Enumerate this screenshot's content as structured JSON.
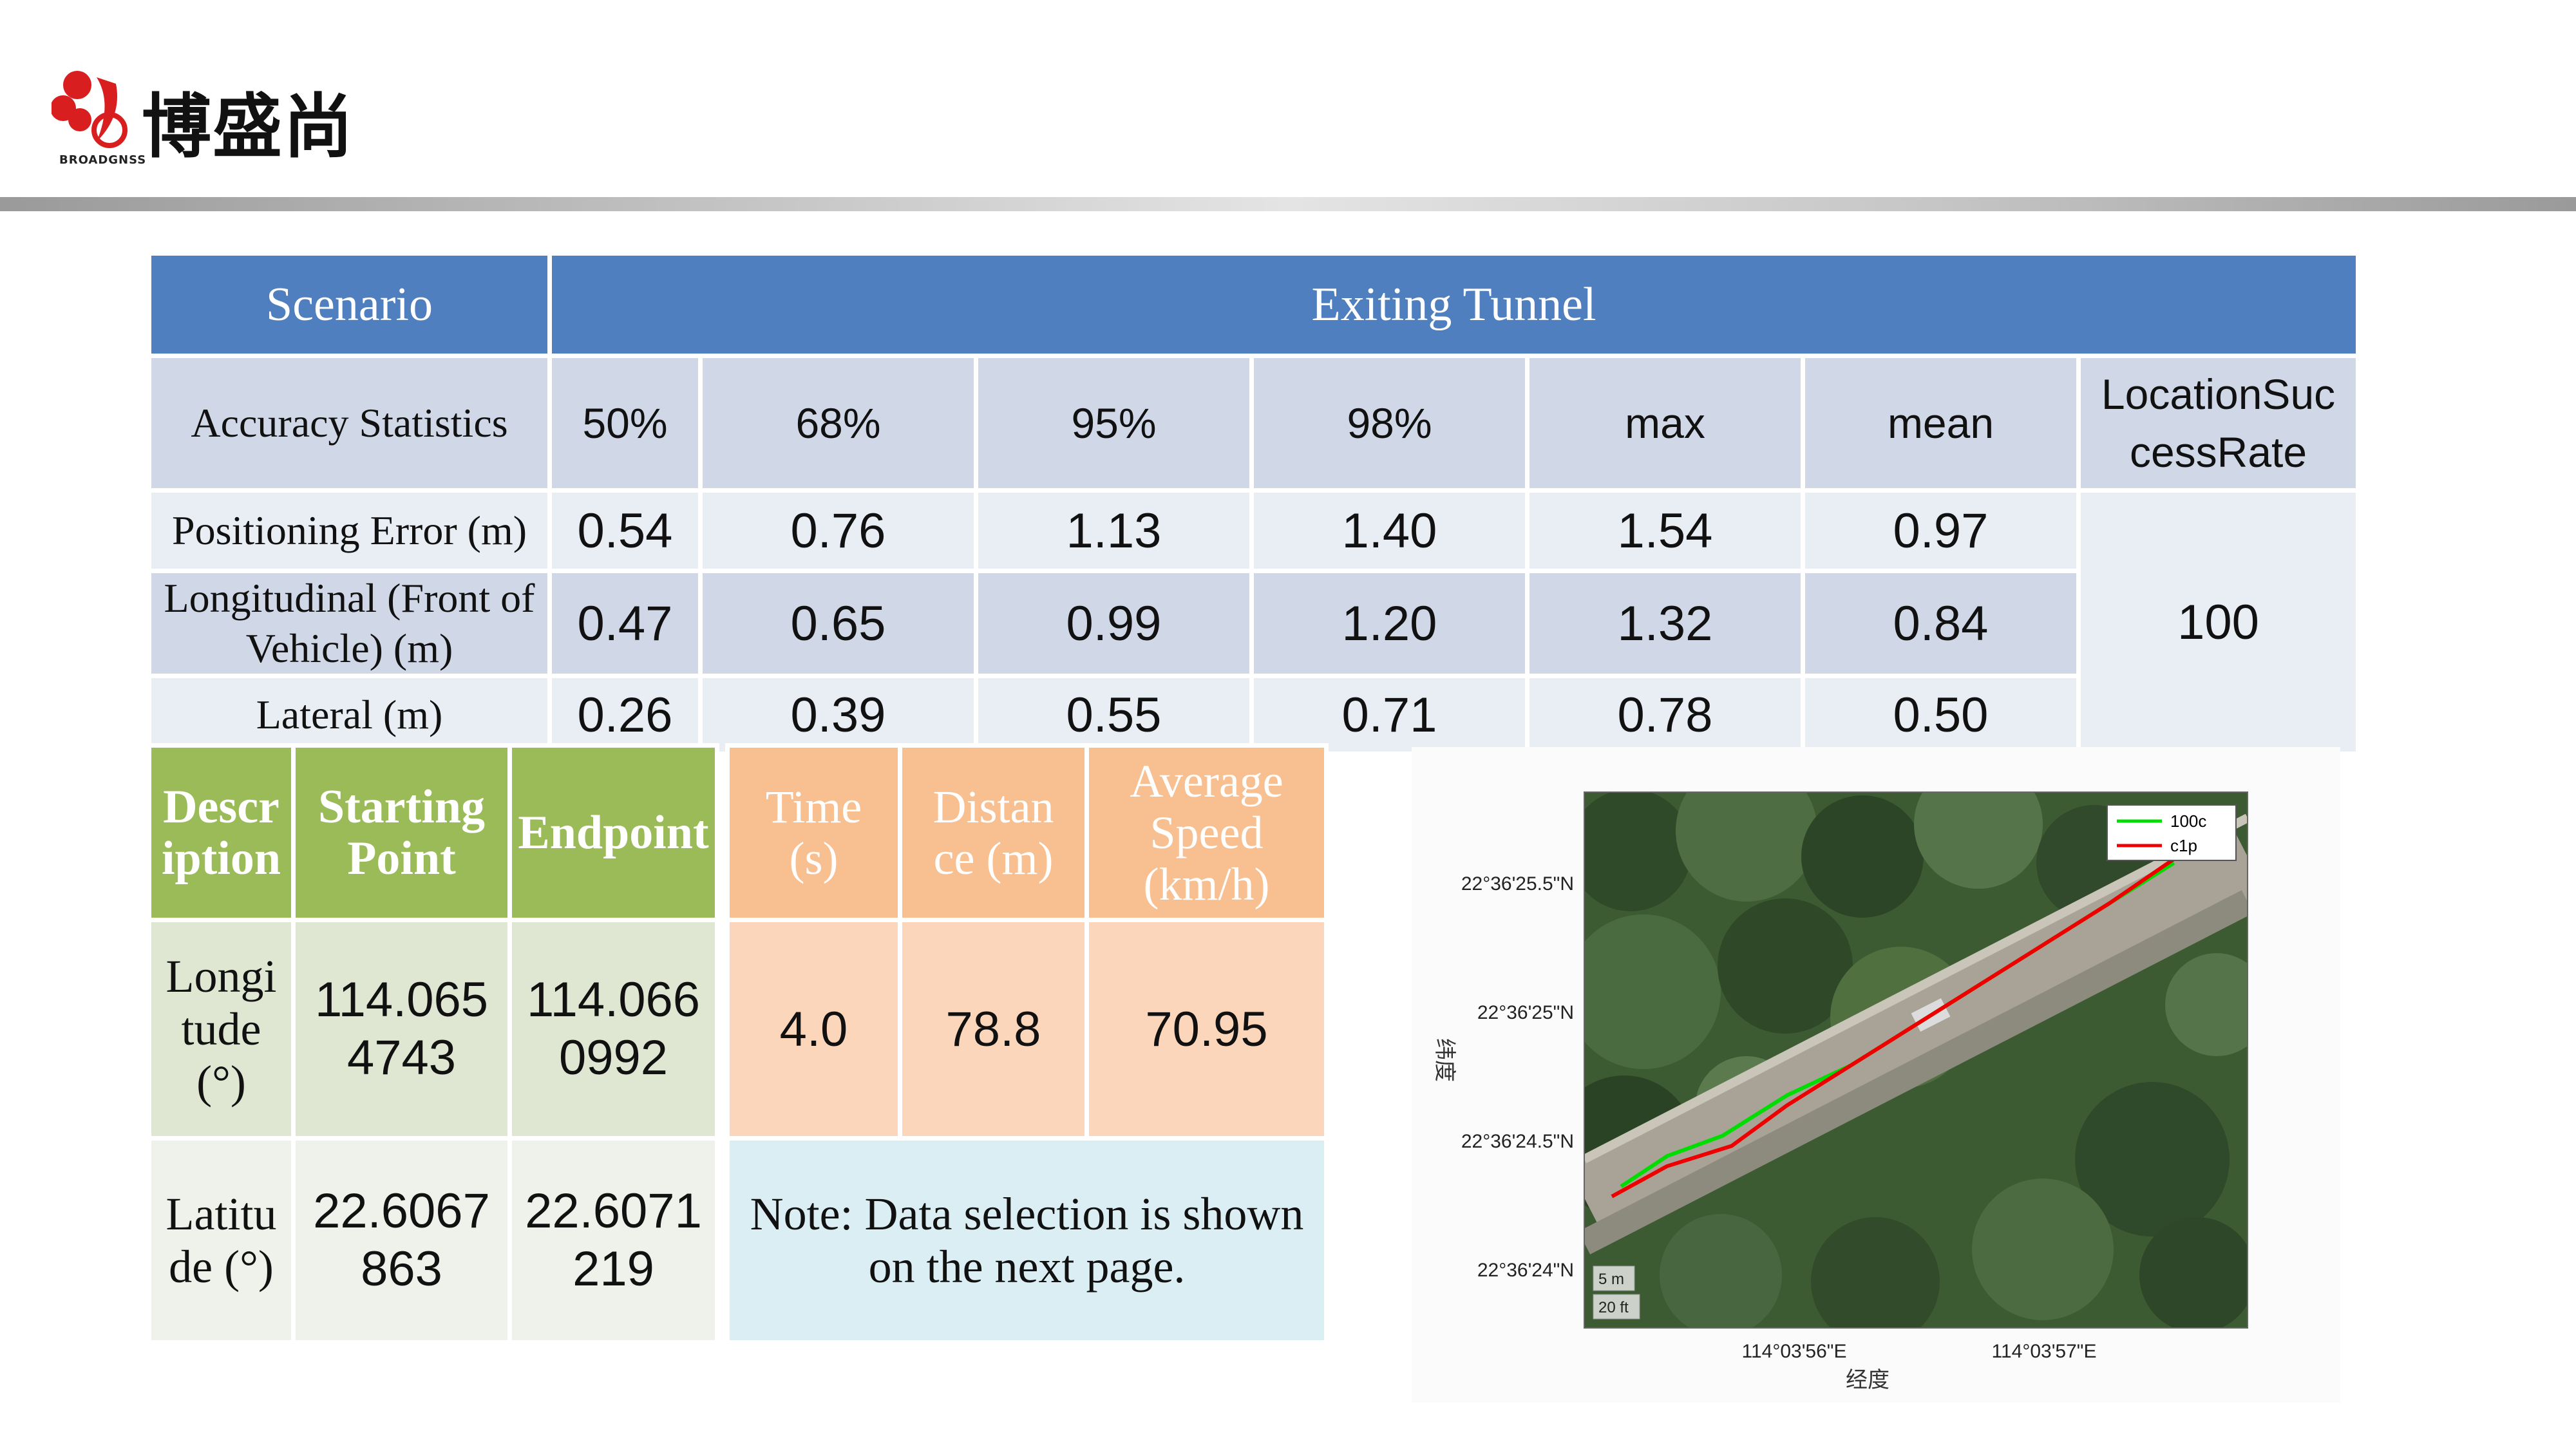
{
  "brand": {
    "name": "博盛尚",
    "sub": "BROADGNSS",
    "logo_icon": "broadgnss-logo-icon"
  },
  "main_table": {
    "scenario_label": "Scenario",
    "scenario_value": "Exiting Tunnel",
    "stats_label": "Accuracy Statistics",
    "columns": [
      "50%",
      "68%",
      "95%",
      "98%",
      "max",
      "mean"
    ],
    "success_label": "LocationSuccessRate",
    "success_value": "100",
    "rows": [
      {
        "label": "Positioning Error (m)",
        "values": [
          "0.54",
          "0.76",
          "1.13",
          "1.40",
          "1.54",
          "0.97"
        ]
      },
      {
        "label": "Longitudinal (Front of Vehicle) (m)",
        "values": [
          "0.47",
          "0.65",
          "0.99",
          "1.20",
          "1.32",
          "0.84"
        ]
      },
      {
        "label": "Lateral (m)",
        "values": [
          "0.26",
          "0.39",
          "0.55",
          "0.71",
          "0.78",
          "0.50"
        ]
      }
    ]
  },
  "desc_table": {
    "headers": [
      "Description",
      "Starting Point",
      "Endpoint"
    ],
    "longitude": {
      "label": "Longitude (°)",
      "start": "114.0654743",
      "end": "114.0660992"
    },
    "latitude": {
      "label": "Latitude (°)",
      "start": "22.6067863",
      "end": "22.6071219"
    }
  },
  "speed_table": {
    "headers": [
      "Time (s)",
      "Distance (m)",
      "Average Speed (km/h)"
    ],
    "values": [
      "4.0",
      "78.8",
      "70.95"
    ],
    "note": "Note: Data selection is shown on the next page."
  },
  "chart_data": {
    "type": "line",
    "background": "satellite-image",
    "xlabel": "经度",
    "ylabel": "纬度",
    "x_ticks": [
      "114°03'56\"E",
      "114°03'57\"E"
    ],
    "y_ticks": [
      "22°36'25.5\"N",
      "22°36'25\"N",
      "22°36'24.5\"N",
      "22°36'24\"N"
    ],
    "scale_labels": [
      "5 m",
      "20 ft"
    ],
    "legend_position": "top-right",
    "series": [
      {
        "name": "100c",
        "color": "#00dd00",
        "x": [
          114.06546,
          114.06551,
          114.06557,
          114.06564,
          114.06571,
          114.06578,
          114.06585,
          114.06592,
          114.06599,
          114.06606
        ],
        "y": [
          22.60679,
          22.60682,
          22.60684,
          22.60688,
          22.60691,
          22.60695,
          22.60699,
          22.60703,
          22.60707,
          22.60711
        ]
      },
      {
        "name": "c1p",
        "color": "#ee0000",
        "x": [
          114.06545,
          114.06551,
          114.06558,
          114.06564,
          114.06571,
          114.06578,
          114.06585,
          114.06592,
          114.06599,
          114.06607
        ],
        "y": [
          22.60678,
          22.60681,
          22.60683,
          22.60687,
          22.60691,
          22.60695,
          22.60699,
          22.60703,
          22.60707,
          22.60712
        ]
      }
    ]
  }
}
